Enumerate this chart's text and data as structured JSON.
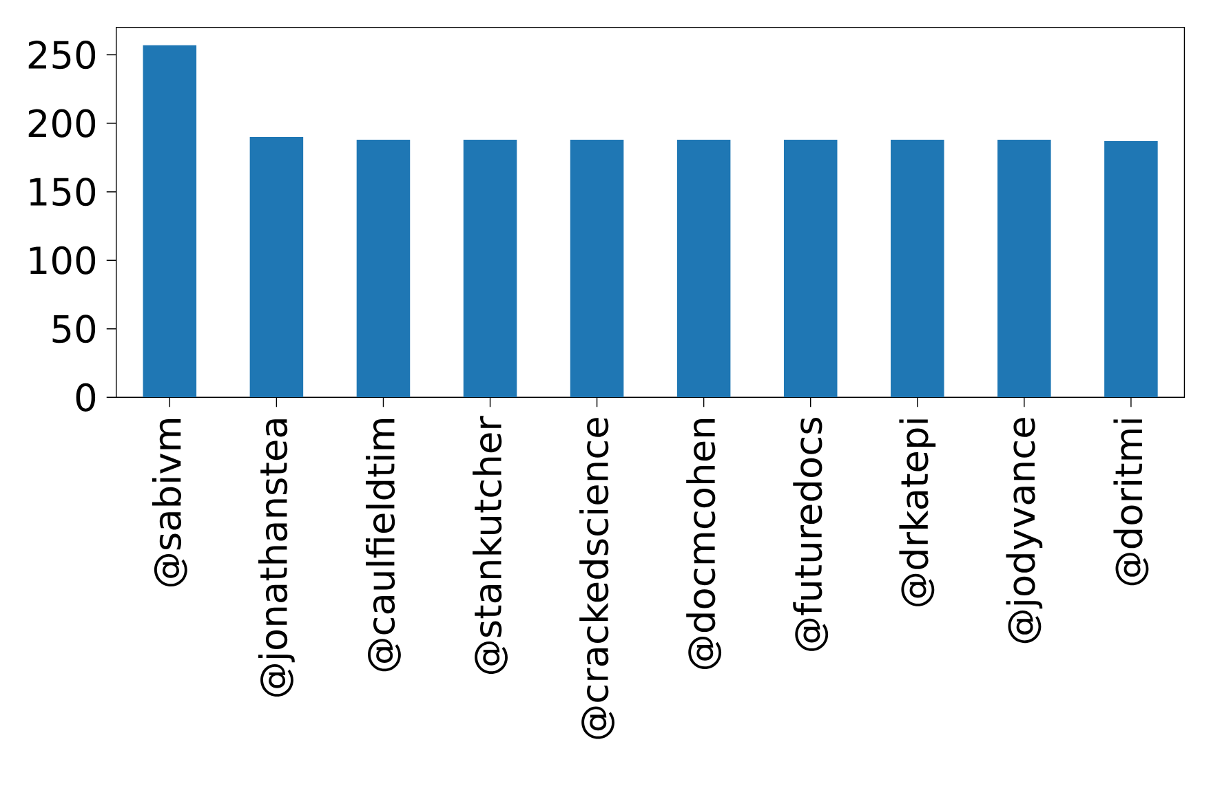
{
  "chart_data": {
    "type": "bar",
    "categories": [
      "@sabivm",
      "@jonathanstea",
      "@caulfieldtim",
      "@stankutcher",
      "@crackedscience",
      "@docmcohen",
      "@futuredocs",
      "@drkatepi",
      "@jodyvance",
      "@doritmi"
    ],
    "values": [
      257,
      190,
      188,
      188,
      188,
      188,
      188,
      188,
      188,
      187
    ],
    "color": "#1f77b4",
    "ylim": [
      0,
      270
    ],
    "yticks": [
      0,
      50,
      100,
      150,
      200,
      250
    ],
    "grid": false
  }
}
